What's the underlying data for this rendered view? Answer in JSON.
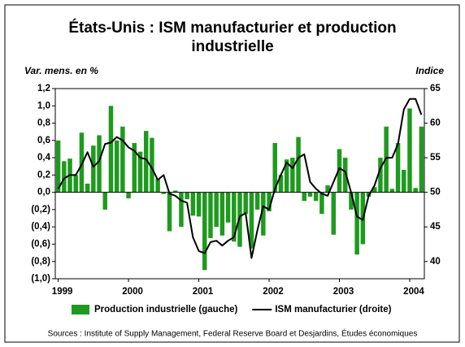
{
  "chart_data": {
    "type": "bar",
    "title": "États-Unis : ISM manufacturier et production",
    "subtitle": "industrielle",
    "y_label": "Var. mens. en %",
    "y2_label": "Indice",
    "source": "Sources : Institute of Supply Management, Federal Reserve Board et Desjardins, Études économiques",
    "categories": [
      "1999",
      null,
      null,
      null,
      null,
      null,
      null,
      null,
      null,
      null,
      null,
      null,
      "2000",
      null,
      null,
      null,
      null,
      null,
      null,
      null,
      null,
      null,
      null,
      null,
      "2001",
      null,
      null,
      null,
      null,
      null,
      null,
      null,
      null,
      null,
      null,
      null,
      "2002",
      null,
      null,
      null,
      null,
      null,
      null,
      null,
      null,
      null,
      null,
      null,
      "2003",
      null,
      null,
      null,
      null,
      null,
      null,
      null,
      null,
      null,
      null,
      null,
      "2004",
      null,
      null
    ],
    "series": [
      {
        "name": "Production industrielle (gauche)",
        "type": "bar",
        "color": "#1e9a1e",
        "values": [
          0.6,
          0.36,
          0.39,
          0.2,
          0.69,
          0.1,
          0.54,
          0.66,
          -0.2,
          1.0,
          0.6,
          0.76,
          -0.07,
          0.57,
          0.47,
          0.71,
          0.63,
          0.16,
          -0.02,
          -0.45,
          0.02,
          -0.4,
          -0.08,
          -0.27,
          -0.28,
          -0.9,
          -0.53,
          -0.4,
          -0.5,
          -0.35,
          -0.57,
          -0.63,
          -0.25,
          -0.65,
          -0.2,
          -0.5,
          -0.22,
          0.57,
          0.2,
          0.38,
          0.4,
          0.64,
          -0.1,
          -0.05,
          -0.1,
          -0.25,
          0.08,
          -0.49,
          0.5,
          0.4,
          -0.2,
          -0.72,
          -0.6,
          -0.05,
          0.06,
          0.4,
          0.76,
          0.04,
          0.57,
          0.26,
          0.97,
          0.05,
          0.76
        ]
      },
      {
        "name": "ISM manufacturier (droite)",
        "type": "line",
        "axis": "y2",
        "color": "#000000",
        "values": [
          50.5,
          52,
          52.5,
          52.5,
          54,
          55.8,
          53.7,
          54.5,
          57,
          57.2,
          58,
          57.5,
          56.5,
          56,
          55,
          54.8,
          53.5,
          51.8,
          52.5,
          49.8,
          49.5,
          48.8,
          48.5,
          43.5,
          41.5,
          41.2,
          42.8,
          43,
          42.3,
          43,
          43.5,
          46.5,
          47,
          40.5,
          44.5,
          48,
          47.5,
          50.5,
          52.5,
          54.3,
          53.5,
          55,
          55.5,
          51.5,
          50.5,
          49.8,
          49.5,
          51.5,
          53.5,
          53,
          50,
          46.5,
          46,
          49.5,
          51,
          53.5,
          55,
          55,
          57,
          62,
          63.5,
          63.5,
          61.2
        ]
      }
    ],
    "ylim": [
      -1.0,
      1.2
    ],
    "yticks": [
      {
        "value": 1.2,
        "label": "1,2"
      },
      {
        "value": 1.0,
        "label": "1,0"
      },
      {
        "value": 0.8,
        "label": "0,8"
      },
      {
        "value": 0.6,
        "label": "0,6"
      },
      {
        "value": 0.4,
        "label": "0,4"
      },
      {
        "value": 0.2,
        "label": "0,2"
      },
      {
        "value": 0,
        "label": "0,0"
      },
      {
        "value": -0.2,
        "label": "(0,2)"
      },
      {
        "value": -0.4,
        "label": "(0,4)"
      },
      {
        "value": -0.6,
        "label": "(0,6)"
      },
      {
        "value": -0.8,
        "label": "(0,8)"
      },
      {
        "value": -1.0,
        "label": "(1,0)"
      }
    ],
    "y2lim": [
      37.5,
      65
    ],
    "y2ticks": [
      40,
      45,
      50,
      55,
      60,
      65
    ],
    "legend": "bottom"
  }
}
